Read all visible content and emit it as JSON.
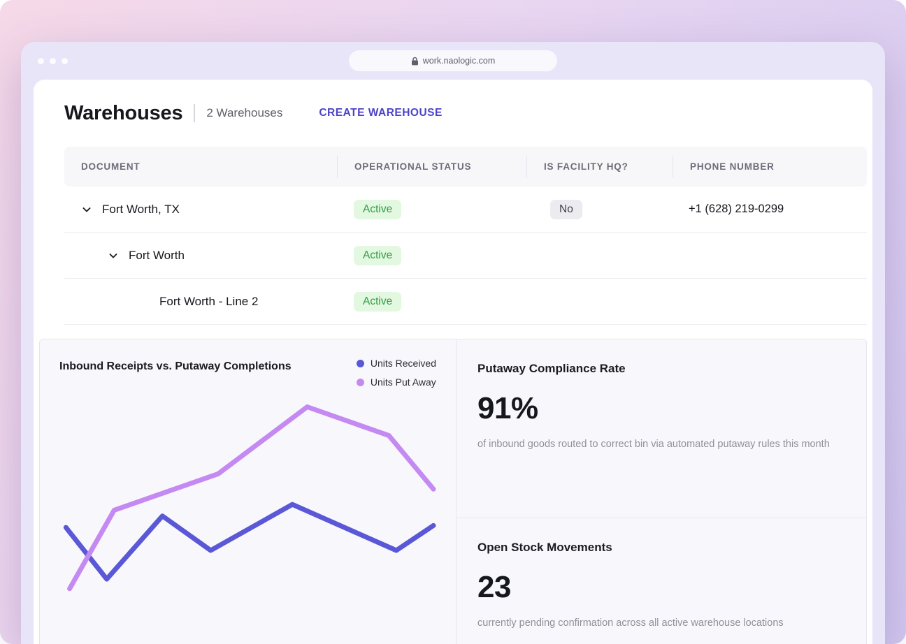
{
  "browser": {
    "url": "work.naologic.com"
  },
  "page": {
    "title": "Warehouses",
    "warehouse_count": "2 Warehouses",
    "create_button_label": "CREATE WAREHOUSE"
  },
  "table": {
    "columns": [
      "DOCUMENT",
      "OPERATIONAL STATUS",
      "IS FACILITY HQ?",
      "PHONE NUMBER"
    ],
    "rows": [
      {
        "document": "Fort Worth, TX",
        "status": "Active",
        "is_hq": "No",
        "phone": "+1 (628) 219-0299",
        "expandable": true,
        "indent": 0
      },
      {
        "document": "Fort Worth",
        "status": "Active",
        "is_hq": "",
        "phone": "",
        "expandable": true,
        "indent": 1
      },
      {
        "document": "Fort Worth - Line 2",
        "status": "Active",
        "is_hq": "",
        "phone": "",
        "expandable": false,
        "indent": 2
      }
    ]
  },
  "dashboard": {
    "stats": [
      {
        "title": "Putaway Compliance Rate",
        "value": "91%",
        "description": "of inbound goods routed to correct bin via automated putaway rules this month"
      },
      {
        "title": "Open Stock Movements",
        "value": "23",
        "description": "currently pending confirmation across all active warehouse locations"
      }
    ]
  },
  "chart_data": {
    "type": "line",
    "title": "Inbound Receipts vs. Putaway Completions",
    "legend_position": "top-right",
    "axes_visible": false,
    "xlabel": "",
    "ylabel": "",
    "y_scale_note": "relative units 0-100, no axis ticks shown",
    "series": [
      {
        "name": "Units Received",
        "color": "#5a58d6",
        "x": [
          1,
          12,
          27,
          40,
          62,
          90,
          100
        ],
        "values": [
          35,
          8,
          41,
          23,
          47,
          23,
          36
        ]
      },
      {
        "name": "Units Put Away",
        "color": "#c48af2",
        "x": [
          2,
          14,
          42,
          66,
          88,
          100
        ],
        "values": [
          3,
          44,
          63,
          98,
          83,
          55
        ]
      }
    ]
  },
  "colors": {
    "accent_purple": "#4d42c8",
    "active_badge_bg": "#e3f8e0",
    "active_badge_text": "#2f9e44",
    "neutral_badge_bg": "#ececf0",
    "neutral_badge_text": "#3f3f48",
    "series_units_received": "#5a58d6",
    "series_units_put_away": "#c48af2"
  }
}
